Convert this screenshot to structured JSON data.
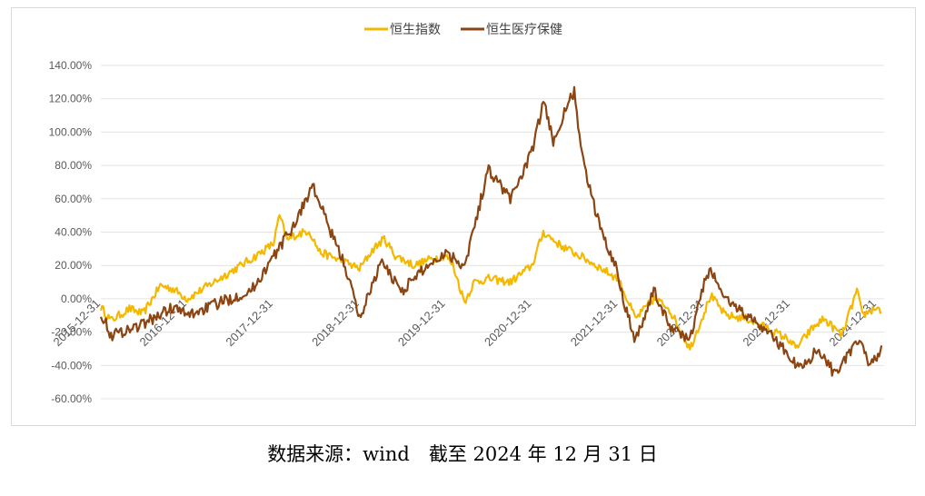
{
  "chart_data": {
    "type": "line",
    "legend_position": "top-center",
    "grid": "horizontal",
    "ylim": [
      -60,
      140
    ],
    "y_ticks": [
      140,
      120,
      100,
      80,
      60,
      40,
      20,
      0,
      -20,
      -40,
      -60
    ],
    "y_tick_labels": [
      "140.00%",
      "120.00%",
      "100.00%",
      "80.00%",
      "60.00%",
      "40.00%",
      "20.00%",
      "0.00%",
      "-20.00%",
      "-40.00%",
      "-60.00%"
    ],
    "x_tick_labels": [
      "2015-12-31",
      "2016-12-31",
      "2017-12-31",
      "2018-12-31",
      "2019-12-31",
      "2020-12-31",
      "2021-12-31",
      "2022-12-31",
      "2023-12-31",
      "2024-12-31"
    ],
    "x_range": [
      "2015-12-31",
      "2025-01-31"
    ],
    "series": [
      {
        "name": "恒生指数",
        "color": "#F5B800",
        "points": [
          [
            "2015-12-31",
            -5
          ],
          [
            "2016-02-12",
            -13
          ],
          [
            "2016-04-30",
            -6
          ],
          [
            "2016-06-27",
            -9
          ],
          [
            "2016-09-08",
            8
          ],
          [
            "2016-10-31",
            6
          ],
          [
            "2016-12-31",
            0
          ],
          [
            "2017-03-31",
            8
          ],
          [
            "2017-06-30",
            16
          ],
          [
            "2017-09-30",
            24
          ],
          [
            "2017-12-31",
            33
          ],
          [
            "2018-01-26",
            50
          ],
          [
            "2018-02-28",
            35
          ],
          [
            "2018-03-31",
            38
          ],
          [
            "2018-05-31",
            41
          ],
          [
            "2018-07-15",
            28
          ],
          [
            "2018-10-31",
            22
          ],
          [
            "2018-12-31",
            18
          ],
          [
            "2019-02-28",
            30
          ],
          [
            "2019-04-15",
            36
          ],
          [
            "2019-05-31",
            26
          ],
          [
            "2019-08-20",
            20
          ],
          [
            "2019-10-31",
            24
          ],
          [
            "2019-12-31",
            26
          ],
          [
            "2020-01-31",
            20
          ],
          [
            "2020-03-20",
            -2
          ],
          [
            "2020-04-30",
            10
          ],
          [
            "2020-06-30",
            12
          ],
          [
            "2020-09-30",
            10
          ],
          [
            "2020-12-31",
            20
          ],
          [
            "2021-02-17",
            40
          ],
          [
            "2021-04-30",
            32
          ],
          [
            "2021-07-31",
            25
          ],
          [
            "2021-09-30",
            20
          ],
          [
            "2021-12-31",
            12
          ],
          [
            "2022-03-15",
            -12
          ],
          [
            "2022-05-31",
            0
          ],
          [
            "2022-07-31",
            -5
          ],
          [
            "2022-10-31",
            -30
          ],
          [
            "2022-12-31",
            -8
          ],
          [
            "2023-01-27",
            2
          ],
          [
            "2023-03-31",
            -10
          ],
          [
            "2023-06-30",
            -12
          ],
          [
            "2023-09-30",
            -18
          ],
          [
            "2023-12-31",
            -25
          ],
          [
            "2024-01-22",
            -30
          ],
          [
            "2024-03-31",
            -18
          ],
          [
            "2024-05-20",
            -12
          ],
          [
            "2024-08-05",
            -22
          ],
          [
            "2024-10-08",
            5
          ],
          [
            "2024-10-31",
            -10
          ],
          [
            "2024-12-31",
            -5
          ],
          [
            "2025-01-20",
            -8
          ]
        ]
      },
      {
        "name": "恒生医疗保健",
        "color": "#8B4513",
        "points": [
          [
            "2015-12-31",
            -8
          ],
          [
            "2016-02-12",
            -22
          ],
          [
            "2016-06-30",
            -15
          ],
          [
            "2016-10-31",
            -5
          ],
          [
            "2016-12-31",
            -10
          ],
          [
            "2017-03-31",
            -5
          ],
          [
            "2017-06-30",
            0
          ],
          [
            "2017-09-30",
            5
          ],
          [
            "2017-12-31",
            25
          ],
          [
            "2018-03-31",
            45
          ],
          [
            "2018-06-15",
            68
          ],
          [
            "2018-08-31",
            40
          ],
          [
            "2018-10-31",
            20
          ],
          [
            "2018-12-31",
            -12
          ],
          [
            "2019-03-31",
            22
          ],
          [
            "2019-06-30",
            5
          ],
          [
            "2019-09-30",
            18
          ],
          [
            "2019-12-31",
            28
          ],
          [
            "2020-03-20",
            20
          ],
          [
            "2020-06-30",
            78
          ],
          [
            "2020-09-30",
            60
          ],
          [
            "2020-12-31",
            88
          ],
          [
            "2021-02-17",
            118
          ],
          [
            "2021-03-31",
            95
          ],
          [
            "2021-06-28",
            125
          ],
          [
            "2021-07-31",
            85
          ],
          [
            "2021-09-30",
            50
          ],
          [
            "2021-12-31",
            15
          ],
          [
            "2022-01-31",
            -5
          ],
          [
            "2022-03-15",
            -25
          ],
          [
            "2022-05-31",
            5
          ],
          [
            "2022-07-31",
            -15
          ],
          [
            "2022-10-31",
            -25
          ],
          [
            "2022-12-31",
            10
          ],
          [
            "2023-01-27",
            17
          ],
          [
            "2023-03-31",
            0
          ],
          [
            "2023-06-30",
            -10
          ],
          [
            "2023-09-30",
            -20
          ],
          [
            "2023-12-31",
            -35
          ],
          [
            "2024-02-05",
            -42
          ],
          [
            "2024-04-30",
            -30
          ],
          [
            "2024-06-30",
            -44
          ],
          [
            "2024-08-31",
            -35
          ],
          [
            "2024-10-08",
            -25
          ],
          [
            "2024-11-30",
            -38
          ],
          [
            "2024-12-31",
            -35
          ],
          [
            "2025-01-20",
            -28
          ]
        ]
      }
    ]
  },
  "source_text": "数据来源：wind　截至 2024 年 12 月 31 日"
}
